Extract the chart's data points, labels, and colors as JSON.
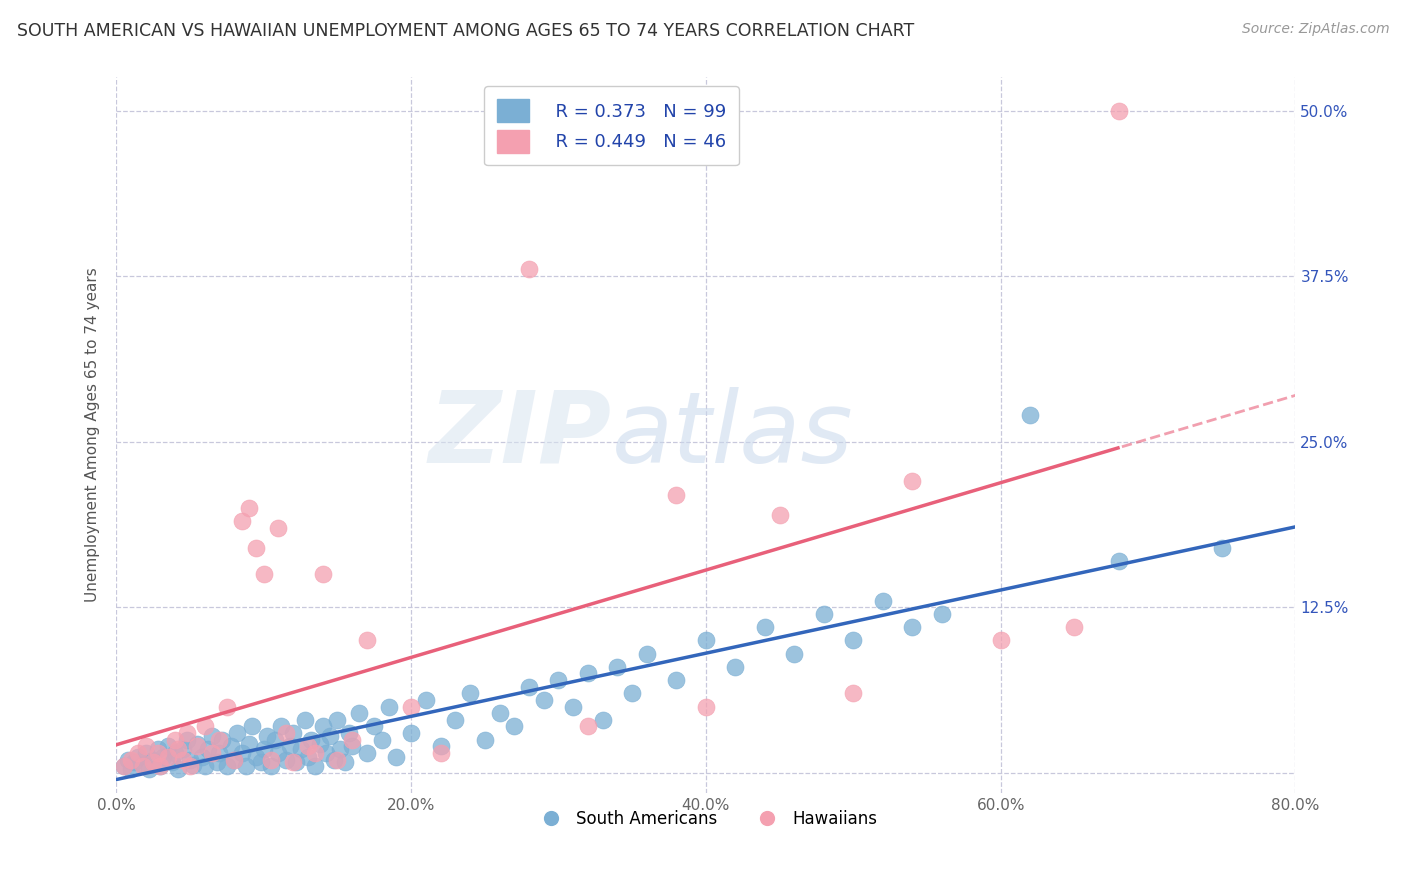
{
  "title": "SOUTH AMERICAN VS HAWAIIAN UNEMPLOYMENT AMONG AGES 65 TO 74 YEARS CORRELATION CHART",
  "source": "Source: ZipAtlas.com",
  "ylabel": "Unemployment Among Ages 65 to 74 years",
  "xlim": [
    0.0,
    0.8
  ],
  "ylim": [
    -0.015,
    0.525
  ],
  "xticks": [
    0.0,
    0.2,
    0.4,
    0.6,
    0.8
  ],
  "xtick_labels": [
    "0.0%",
    "20.0%",
    "40.0%",
    "60.0%",
    "80.0%"
  ],
  "yticks": [
    0.0,
    0.125,
    0.25,
    0.375,
    0.5
  ],
  "ytick_labels": [
    "",
    "12.5%",
    "25.0%",
    "37.5%",
    "50.0%"
  ],
  "blue_R": 0.373,
  "blue_N": 99,
  "pink_R": 0.449,
  "pink_N": 46,
  "blue_color": "#7BAFD4",
  "pink_color": "#F4A0B0",
  "blue_line_color": "#3366BB",
  "pink_line_color": "#E8607A",
  "background_color": "#FFFFFF",
  "grid_color": "#C8C8DC",
  "blue_points": [
    [
      0.005,
      0.005
    ],
    [
      0.008,
      0.01
    ],
    [
      0.01,
      0.003
    ],
    [
      0.012,
      0.008
    ],
    [
      0.015,
      0.012
    ],
    [
      0.018,
      0.006
    ],
    [
      0.02,
      0.015
    ],
    [
      0.022,
      0.003
    ],
    [
      0.025,
      0.01
    ],
    [
      0.028,
      0.018
    ],
    [
      0.03,
      0.005
    ],
    [
      0.032,
      0.012
    ],
    [
      0.035,
      0.02
    ],
    [
      0.038,
      0.008
    ],
    [
      0.04,
      0.015
    ],
    [
      0.042,
      0.003
    ],
    [
      0.045,
      0.018
    ],
    [
      0.048,
      0.025
    ],
    [
      0.05,
      0.01
    ],
    [
      0.052,
      0.006
    ],
    [
      0.055,
      0.022
    ],
    [
      0.058,
      0.012
    ],
    [
      0.06,
      0.005
    ],
    [
      0.062,
      0.018
    ],
    [
      0.065,
      0.028
    ],
    [
      0.068,
      0.008
    ],
    [
      0.07,
      0.015
    ],
    [
      0.072,
      0.025
    ],
    [
      0.075,
      0.005
    ],
    [
      0.078,
      0.02
    ],
    [
      0.08,
      0.01
    ],
    [
      0.082,
      0.03
    ],
    [
      0.085,
      0.015
    ],
    [
      0.088,
      0.005
    ],
    [
      0.09,
      0.022
    ],
    [
      0.092,
      0.035
    ],
    [
      0.095,
      0.012
    ],
    [
      0.098,
      0.008
    ],
    [
      0.1,
      0.018
    ],
    [
      0.102,
      0.028
    ],
    [
      0.105,
      0.005
    ],
    [
      0.108,
      0.025
    ],
    [
      0.11,
      0.015
    ],
    [
      0.112,
      0.035
    ],
    [
      0.115,
      0.01
    ],
    [
      0.118,
      0.02
    ],
    [
      0.12,
      0.03
    ],
    [
      0.122,
      0.008
    ],
    [
      0.125,
      0.018
    ],
    [
      0.128,
      0.04
    ],
    [
      0.13,
      0.012
    ],
    [
      0.132,
      0.025
    ],
    [
      0.135,
      0.005
    ],
    [
      0.138,
      0.022
    ],
    [
      0.14,
      0.035
    ],
    [
      0.142,
      0.015
    ],
    [
      0.145,
      0.028
    ],
    [
      0.148,
      0.01
    ],
    [
      0.15,
      0.04
    ],
    [
      0.152,
      0.018
    ],
    [
      0.155,
      0.008
    ],
    [
      0.158,
      0.03
    ],
    [
      0.16,
      0.02
    ],
    [
      0.165,
      0.045
    ],
    [
      0.17,
      0.015
    ],
    [
      0.175,
      0.035
    ],
    [
      0.18,
      0.025
    ],
    [
      0.185,
      0.05
    ],
    [
      0.19,
      0.012
    ],
    [
      0.2,
      0.03
    ],
    [
      0.21,
      0.055
    ],
    [
      0.22,
      0.02
    ],
    [
      0.23,
      0.04
    ],
    [
      0.24,
      0.06
    ],
    [
      0.25,
      0.025
    ],
    [
      0.26,
      0.045
    ],
    [
      0.27,
      0.035
    ],
    [
      0.28,
      0.065
    ],
    [
      0.29,
      0.055
    ],
    [
      0.3,
      0.07
    ],
    [
      0.31,
      0.05
    ],
    [
      0.32,
      0.075
    ],
    [
      0.33,
      0.04
    ],
    [
      0.34,
      0.08
    ],
    [
      0.35,
      0.06
    ],
    [
      0.36,
      0.09
    ],
    [
      0.38,
      0.07
    ],
    [
      0.4,
      0.1
    ],
    [
      0.42,
      0.08
    ],
    [
      0.44,
      0.11
    ],
    [
      0.46,
      0.09
    ],
    [
      0.48,
      0.12
    ],
    [
      0.5,
      0.1
    ],
    [
      0.52,
      0.13
    ],
    [
      0.54,
      0.11
    ],
    [
      0.56,
      0.12
    ],
    [
      0.62,
      0.27
    ],
    [
      0.68,
      0.16
    ],
    [
      0.75,
      0.17
    ]
  ],
  "pink_points": [
    [
      0.005,
      0.005
    ],
    [
      0.01,
      0.01
    ],
    [
      0.015,
      0.015
    ],
    [
      0.018,
      0.005
    ],
    [
      0.02,
      0.02
    ],
    [
      0.025,
      0.008
    ],
    [
      0.028,
      0.015
    ],
    [
      0.03,
      0.005
    ],
    [
      0.035,
      0.012
    ],
    [
      0.04,
      0.025
    ],
    [
      0.042,
      0.018
    ],
    [
      0.045,
      0.01
    ],
    [
      0.048,
      0.03
    ],
    [
      0.05,
      0.005
    ],
    [
      0.055,
      0.02
    ],
    [
      0.06,
      0.035
    ],
    [
      0.065,
      0.015
    ],
    [
      0.07,
      0.025
    ],
    [
      0.075,
      0.05
    ],
    [
      0.08,
      0.01
    ],
    [
      0.085,
      0.19
    ],
    [
      0.09,
      0.2
    ],
    [
      0.095,
      0.17
    ],
    [
      0.1,
      0.15
    ],
    [
      0.105,
      0.01
    ],
    [
      0.11,
      0.185
    ],
    [
      0.115,
      0.03
    ],
    [
      0.12,
      0.008
    ],
    [
      0.13,
      0.02
    ],
    [
      0.135,
      0.015
    ],
    [
      0.14,
      0.15
    ],
    [
      0.15,
      0.01
    ],
    [
      0.16,
      0.025
    ],
    [
      0.17,
      0.1
    ],
    [
      0.2,
      0.05
    ],
    [
      0.22,
      0.015
    ],
    [
      0.28,
      0.38
    ],
    [
      0.32,
      0.035
    ],
    [
      0.38,
      0.21
    ],
    [
      0.4,
      0.05
    ],
    [
      0.45,
      0.195
    ],
    [
      0.5,
      0.06
    ],
    [
      0.54,
      0.22
    ],
    [
      0.6,
      0.1
    ],
    [
      0.65,
      0.11
    ],
    [
      0.68,
      0.5
    ]
  ]
}
